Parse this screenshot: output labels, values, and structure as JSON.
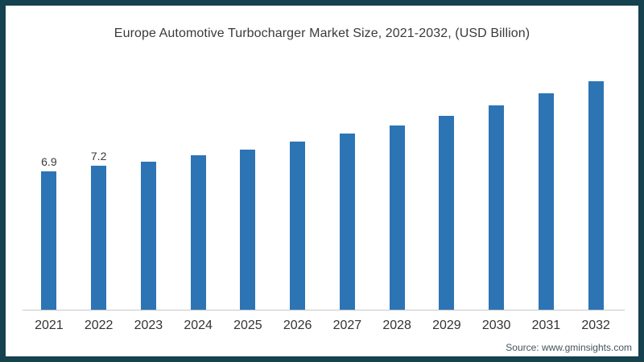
{
  "colors": {
    "bar": "#2d74b5",
    "border": "#16414f",
    "axis_line": "#c8c8c8",
    "title_text": "#3a3a3a",
    "tick_text": "#333333",
    "source_text": "#44545e"
  },
  "source": "Source: www.gminsights.com",
  "chart_data": {
    "type": "bar",
    "title": "Europe Automotive Turbocharger Market Size, 2021-2032, (USD Billion)",
    "categories": [
      "2021",
      "2022",
      "2023",
      "2024",
      "2025",
      "2026",
      "2027",
      "2028",
      "2029",
      "2030",
      "2031",
      "2032"
    ],
    "values": [
      6.9,
      7.2,
      7.4,
      7.7,
      8.0,
      8.4,
      8.8,
      9.2,
      9.7,
      10.2,
      10.8,
      11.4
    ],
    "data_labels": {
      "2021": "6.9",
      "2022": "7.2"
    },
    "xlabel": "",
    "ylabel": "",
    "ylim": [
      0,
      12.4
    ],
    "grid": false,
    "legend": false,
    "bar_color": "#2d74b5"
  }
}
